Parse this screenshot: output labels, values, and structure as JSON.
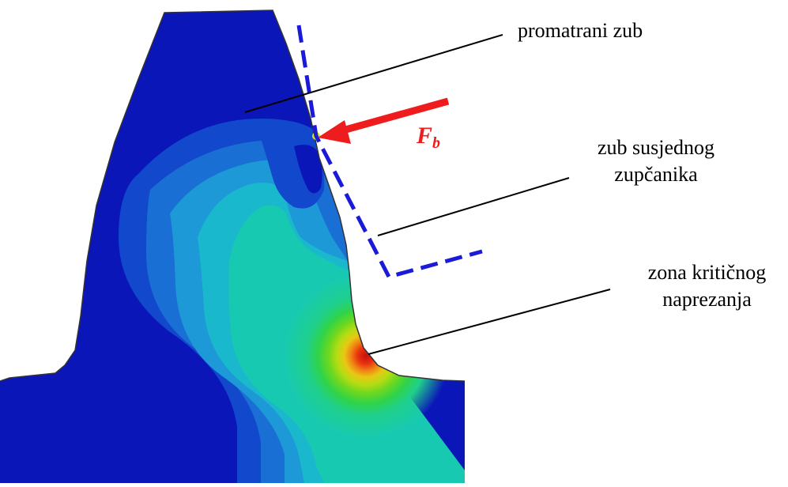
{
  "labels": {
    "observed_tooth": "promatrani zub",
    "neighbor_tooth_line1": "zub susjednog",
    "neighbor_tooth_line2": "zupčanika",
    "critical_zone_line1": "zona kritičnog",
    "critical_zone_line2": "naprezanja"
  },
  "force": {
    "symbol": "F",
    "subscript": "b"
  },
  "colors": {
    "base_blue": "#0b16b8",
    "dashed_line": "#1a1ad8",
    "force_arrow": "#ee1c1c",
    "contour_scale": [
      "#0b16b8",
      "#1248cc",
      "#1a6fd4",
      "#1c99d6",
      "#19b8cc",
      "#18c9b2",
      "#1fd08c",
      "#2fd34a",
      "#6fd81e",
      "#b6dc14",
      "#e8c814",
      "#f08214",
      "#e8330f",
      "#c8100c"
    ]
  }
}
